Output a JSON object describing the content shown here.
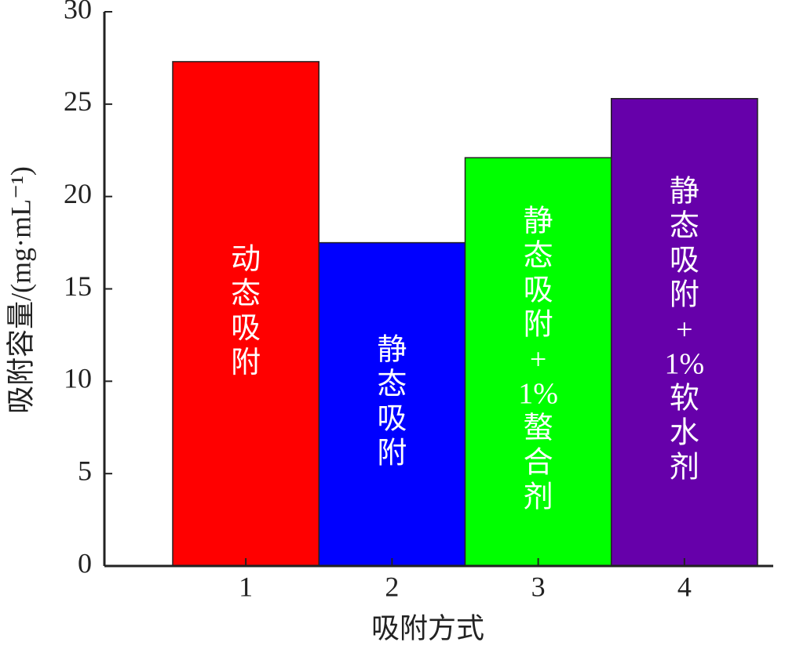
{
  "chart_data": {
    "type": "bar",
    "categories": [
      "1",
      "2",
      "3",
      "4"
    ],
    "values": [
      27.3,
      17.5,
      22.1,
      25.3
    ],
    "colors": [
      "#ff0000",
      "#0000ff",
      "#00ff00",
      "#6600aa"
    ],
    "bar_labels": [
      [
        "动",
        "态",
        "吸",
        "附"
      ],
      [
        "静",
        "态",
        "吸",
        "附"
      ],
      [
        "静",
        "态",
        "吸",
        "附",
        "+",
        "1%",
        "螯",
        "合",
        "剂"
      ],
      [
        "静",
        "态",
        "吸",
        "附",
        "+",
        "1%",
        "软",
        "水",
        "剂"
      ]
    ],
    "xlabel": "吸附方式",
    "ylabel": "吸附容量/(mg·mL⁻¹)",
    "ylim": [
      0,
      30
    ],
    "yticks": [
      0,
      5,
      10,
      15,
      20,
      25,
      30
    ],
    "grid": false
  }
}
